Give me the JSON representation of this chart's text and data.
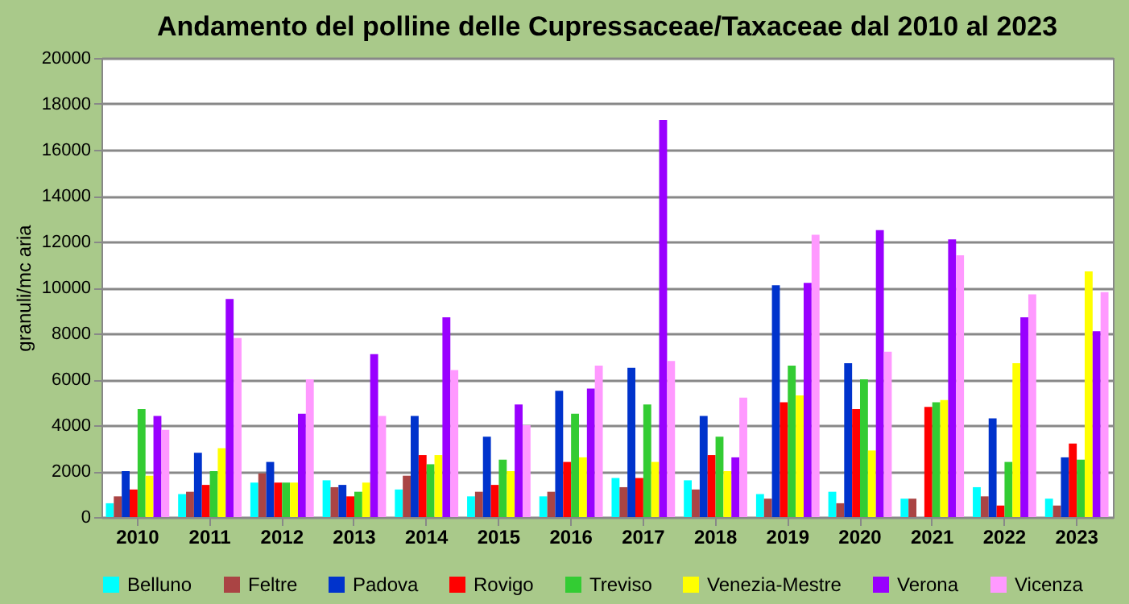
{
  "chart_data": {
    "type": "bar",
    "title": "Andamento del polline  delle Cupressaceae/Taxaceae dal 2010 al 2023",
    "ylabel": "granuli/mc aria",
    "categories": [
      "2010",
      "2011",
      "2012",
      "2013",
      "2014",
      "2015",
      "2016",
      "2017",
      "2018",
      "2019",
      "2020",
      "2021",
      "2022",
      "2023"
    ],
    "series": [
      {
        "name": "Belluno",
        "color": "#00ffff",
        "values": [
          600,
          1000,
          1500,
          1600,
          1200,
          900,
          900,
          1700,
          1600,
          1000,
          1100,
          800,
          1300,
          800
        ]
      },
      {
        "name": "Feltre",
        "color": "#aa4444",
        "values": [
          900,
          1100,
          1900,
          1300,
          1800,
          1100,
          1100,
          1300,
          1200,
          800,
          600,
          800,
          900,
          500
        ]
      },
      {
        "name": "Padova",
        "color": "#0033cc",
        "values": [
          2000,
          2800,
          2400,
          1400,
          4400,
          3500,
          5500,
          6500,
          4400,
          10100,
          6700,
          null,
          4300,
          2600
        ]
      },
      {
        "name": "Rovigo",
        "color": "#ff0000",
        "values": [
          1200,
          1400,
          1500,
          900,
          2700,
          1400,
          2400,
          1700,
          2700,
          5000,
          4700,
          4800,
          500,
          3200
        ]
      },
      {
        "name": "Treviso",
        "color": "#33cc33",
        "values": [
          4700,
          2000,
          1500,
          1100,
          2300,
          2500,
          4500,
          4900,
          3500,
          6600,
          6000,
          5000,
          2400,
          2500
        ]
      },
      {
        "name": "Venezia-Mestre",
        "color": "#ffff00",
        "values": [
          1800,
          3000,
          1500,
          1500,
          2700,
          2000,
          2600,
          2400,
          2000,
          5300,
          2900,
          5100,
          6700,
          10700
        ]
      },
      {
        "name": "Verona",
        "color": "#9900ff",
        "values": [
          4400,
          9500,
          4500,
          7100,
          8700,
          4900,
          5600,
          17300,
          2600,
          10200,
          12500,
          12100,
          8700,
          8100
        ]
      },
      {
        "name": "Vicenza",
        "color": "#ff99ff",
        "values": [
          3800,
          7800,
          6000,
          4400,
          6400,
          4000,
          6600,
          6800,
          5200,
          12300,
          7200,
          11400,
          9700,
          9800
        ]
      }
    ],
    "ylim": [
      0,
      20000
    ],
    "yticks": [
      0,
      2000,
      4000,
      6000,
      8000,
      10000,
      12000,
      14000,
      16000,
      18000,
      20000
    ],
    "grid": "y",
    "legend": "bottom"
  }
}
